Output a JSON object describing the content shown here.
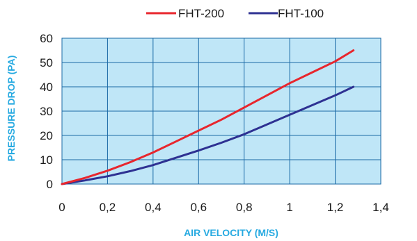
{
  "chart_data": {
    "type": "line",
    "xlabel": "AIR VELOCITY (M/S)",
    "ylabel": "PRESSURE  DROP (PA)",
    "xlim": [
      0,
      1.4
    ],
    "ylim": [
      0,
      60
    ],
    "x_ticks": [
      "0",
      "0,2",
      "0,4",
      "0,6",
      "0,8",
      "1",
      "1,2",
      "1,4"
    ],
    "y_ticks": [
      "0",
      "10",
      "20",
      "30",
      "40",
      "50",
      "60"
    ],
    "grid": true,
    "legend_position": "top",
    "series": [
      {
        "name": "FHT-200",
        "color": "#e8262d",
        "x": [
          0,
          0.1,
          0.2,
          0.3,
          0.4,
          0.5,
          0.6,
          0.7,
          0.8,
          0.9,
          1.0,
          1.1,
          1.2,
          1.28
        ],
        "y": [
          0,
          2.5,
          5.5,
          9.0,
          13.0,
          17.5,
          22.0,
          26.5,
          31.5,
          36.5,
          41.5,
          46.0,
          50.5,
          55.0
        ]
      },
      {
        "name": "FHT-100",
        "color": "#2e3192",
        "x": [
          0,
          0.1,
          0.2,
          0.3,
          0.4,
          0.5,
          0.6,
          0.7,
          0.8,
          0.9,
          1.0,
          1.1,
          1.2,
          1.28
        ],
        "y": [
          0,
          1.5,
          3.2,
          5.3,
          7.8,
          10.8,
          13.8,
          17.0,
          20.5,
          24.5,
          28.5,
          32.5,
          36.5,
          40.0
        ]
      }
    ],
    "colors": {
      "plot_background": "#bfe6f7",
      "grid": "#1b6aa6",
      "axis_title": "#27aae1"
    }
  }
}
